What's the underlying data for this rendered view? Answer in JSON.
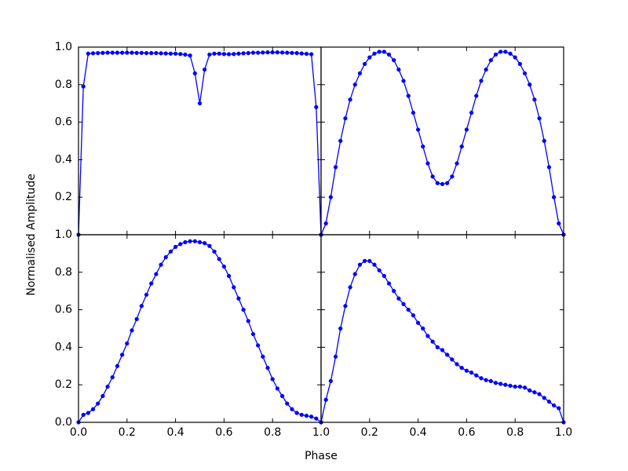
{
  "figure": {
    "xlabel": "Phase",
    "ylabel": "Normalised Amplitude"
  },
  "chart_data": [
    {
      "type": "line",
      "color": "#0000ff",
      "xlim": [
        0,
        1
      ],
      "ylim": [
        0,
        1
      ],
      "xtick_labels": false,
      "ytick_labels": true,
      "xticks": [
        0.2,
        0.4,
        0.6,
        0.8
      ],
      "yticks": [
        {
          "value": 0.2,
          "label": "0.2"
        },
        {
          "value": 0.4,
          "label": "0.4"
        },
        {
          "value": 0.6,
          "label": "0.6"
        },
        {
          "value": 0.8,
          "label": "0.8"
        },
        {
          "value": 1,
          "label": "1.0"
        }
      ],
      "x": [
        0,
        0.02,
        0.04,
        0.06,
        0.08,
        0.1,
        0.12,
        0.14,
        0.16,
        0.18,
        0.2,
        0.22,
        0.24,
        0.26,
        0.28,
        0.3,
        0.32,
        0.34,
        0.36,
        0.38,
        0.4,
        0.42,
        0.44,
        0.46,
        0.48,
        0.5,
        0.52,
        0.54,
        0.56,
        0.58,
        0.6,
        0.62,
        0.64,
        0.66,
        0.68,
        0.7,
        0.72,
        0.74,
        0.76,
        0.78,
        0.8,
        0.82,
        0.84,
        0.86,
        0.88,
        0.9,
        0.92,
        0.94,
        0.96,
        0.98,
        1
      ],
      "values": [
        0,
        0.79,
        0.965,
        0.967,
        0.968,
        0.969,
        0.97,
        0.97,
        0.97,
        0.97,
        0.97,
        0.97,
        0.969,
        0.969,
        0.968,
        0.968,
        0.968,
        0.967,
        0.966,
        0.965,
        0.965,
        0.963,
        0.96,
        0.955,
        0.86,
        0.7,
        0.88,
        0.96,
        0.965,
        0.965,
        0.963,
        0.962,
        0.963,
        0.965,
        0.967,
        0.968,
        0.97,
        0.97,
        0.971,
        0.972,
        0.972,
        0.972,
        0.971,
        0.97,
        0.969,
        0.968,
        0.966,
        0.964,
        0.962,
        0.68,
        0
      ]
    },
    {
      "type": "line",
      "color": "#0000ff",
      "xlim": [
        0,
        1
      ],
      "ylim": [
        0,
        1
      ],
      "xtick_labels": false,
      "ytick_labels": false,
      "xticks": [
        0.2,
        0.4,
        0.6,
        0.8
      ],
      "yticks": [
        0.2,
        0.4,
        0.6,
        0.8
      ],
      "x": [
        0,
        0.02,
        0.04,
        0.06,
        0.08,
        0.1,
        0.12,
        0.14,
        0.16,
        0.18,
        0.2,
        0.22,
        0.24,
        0.26,
        0.28,
        0.3,
        0.32,
        0.34,
        0.36,
        0.38,
        0.4,
        0.42,
        0.44,
        0.46,
        0.48,
        0.5,
        0.52,
        0.54,
        0.56,
        0.58,
        0.6,
        0.62,
        0.64,
        0.66,
        0.68,
        0.7,
        0.72,
        0.74,
        0.76,
        0.78,
        0.8,
        0.82,
        0.84,
        0.86,
        0.88,
        0.9,
        0.92,
        0.94,
        0.96,
        0.98,
        1
      ],
      "values": [
        0,
        0.06,
        0.2,
        0.36,
        0.5,
        0.62,
        0.72,
        0.8,
        0.86,
        0.91,
        0.945,
        0.965,
        0.975,
        0.975,
        0.96,
        0.93,
        0.88,
        0.82,
        0.74,
        0.65,
        0.56,
        0.47,
        0.38,
        0.31,
        0.275,
        0.27,
        0.275,
        0.31,
        0.38,
        0.47,
        0.56,
        0.65,
        0.74,
        0.82,
        0.88,
        0.93,
        0.96,
        0.975,
        0.975,
        0.965,
        0.945,
        0.91,
        0.86,
        0.8,
        0.72,
        0.62,
        0.5,
        0.36,
        0.2,
        0.06,
        0
      ]
    },
    {
      "type": "line",
      "color": "#0000ff",
      "xlim": [
        0,
        1
      ],
      "ylim": [
        0,
        1
      ],
      "xtick_labels": true,
      "ytick_labels": true,
      "xticks": [
        {
          "value": 0,
          "label": "0.0"
        },
        {
          "value": 0.2,
          "label": "0.2"
        },
        {
          "value": 0.4,
          "label": "0.4"
        },
        {
          "value": 0.6,
          "label": "0.6"
        },
        {
          "value": 0.8,
          "label": "0.8"
        },
        {
          "value": 1,
          "label": "1.0"
        }
      ],
      "yticks": [
        {
          "value": 0,
          "label": "0.0"
        },
        {
          "value": 0.2,
          "label": "0.2"
        },
        {
          "value": 0.4,
          "label": "0.4"
        },
        {
          "value": 0.6,
          "label": "0.6"
        },
        {
          "value": 0.8,
          "label": "0.8"
        },
        {
          "value": 1,
          "label": "1.0"
        }
      ],
      "x": [
        0,
        0.02,
        0.04,
        0.06,
        0.08,
        0.1,
        0.12,
        0.14,
        0.16,
        0.18,
        0.2,
        0.22,
        0.24,
        0.26,
        0.28,
        0.3,
        0.32,
        0.34,
        0.36,
        0.38,
        0.4,
        0.42,
        0.44,
        0.46,
        0.48,
        0.5,
        0.52,
        0.54,
        0.56,
        0.58,
        0.6,
        0.62,
        0.64,
        0.66,
        0.68,
        0.7,
        0.72,
        0.74,
        0.76,
        0.78,
        0.8,
        0.82,
        0.84,
        0.86,
        0.88,
        0.9,
        0.92,
        0.94,
        0.96,
        0.98,
        1
      ],
      "values": [
        0,
        0.04,
        0.05,
        0.07,
        0.1,
        0.14,
        0.19,
        0.24,
        0.3,
        0.36,
        0.42,
        0.49,
        0.55,
        0.62,
        0.68,
        0.74,
        0.79,
        0.84,
        0.88,
        0.91,
        0.935,
        0.95,
        0.96,
        0.965,
        0.965,
        0.96,
        0.955,
        0.94,
        0.91,
        0.87,
        0.83,
        0.78,
        0.72,
        0.66,
        0.6,
        0.54,
        0.47,
        0.41,
        0.35,
        0.29,
        0.23,
        0.18,
        0.14,
        0.1,
        0.07,
        0.05,
        0.04,
        0.035,
        0.03,
        0.02,
        0
      ]
    },
    {
      "type": "line",
      "color": "#0000ff",
      "xlim": [
        0,
        1
      ],
      "ylim": [
        0,
        1
      ],
      "xtick_labels": true,
      "ytick_labels": false,
      "xticks": [
        {
          "value": 0.2,
          "label": "0.2"
        },
        {
          "value": 0.4,
          "label": "0.4"
        },
        {
          "value": 0.6,
          "label": "0.6"
        },
        {
          "value": 0.8,
          "label": "0.8"
        },
        {
          "value": 1,
          "label": "1.0"
        }
      ],
      "yticks": [
        0.2,
        0.4,
        0.6,
        0.8
      ],
      "x": [
        0,
        0.02,
        0.04,
        0.06,
        0.08,
        0.1,
        0.12,
        0.14,
        0.16,
        0.18,
        0.2,
        0.22,
        0.24,
        0.26,
        0.28,
        0.3,
        0.32,
        0.34,
        0.36,
        0.38,
        0.4,
        0.42,
        0.44,
        0.46,
        0.48,
        0.5,
        0.52,
        0.54,
        0.56,
        0.58,
        0.6,
        0.62,
        0.64,
        0.66,
        0.68,
        0.7,
        0.72,
        0.74,
        0.76,
        0.78,
        0.8,
        0.82,
        0.84,
        0.86,
        0.88,
        0.9,
        0.92,
        0.94,
        0.96,
        0.98,
        1
      ],
      "values": [
        0,
        0.12,
        0.22,
        0.35,
        0.5,
        0.62,
        0.72,
        0.79,
        0.84,
        0.86,
        0.86,
        0.84,
        0.81,
        0.78,
        0.74,
        0.7,
        0.66,
        0.63,
        0.6,
        0.57,
        0.53,
        0.5,
        0.46,
        0.43,
        0.4,
        0.385,
        0.36,
        0.335,
        0.31,
        0.29,
        0.275,
        0.265,
        0.25,
        0.235,
        0.225,
        0.22,
        0.21,
        0.205,
        0.2,
        0.195,
        0.19,
        0.19,
        0.185,
        0.17,
        0.16,
        0.15,
        0.13,
        0.11,
        0.09,
        0.075,
        0
      ]
    }
  ]
}
